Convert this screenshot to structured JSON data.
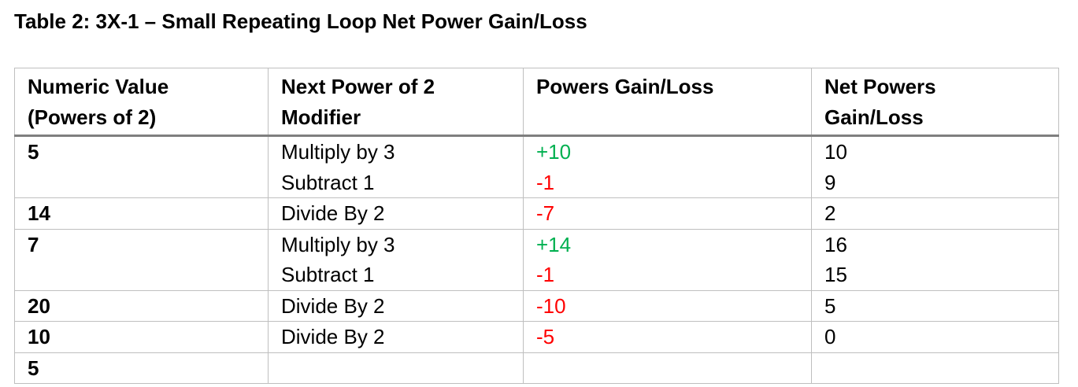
{
  "title": "Table 2: 3X-1 – Small Repeating Loop Net Power Gain/Loss",
  "colors": {
    "gain": "#00b050",
    "loss": "#ff0000",
    "grid": "#bfbfbf",
    "header_rule": "#7f7f7f"
  },
  "headers": {
    "col1_line1": "Numeric Value",
    "col1_line2": "(Powers of 2)",
    "col2_line1": "Next Power of 2",
    "col2_line2": "Modifier",
    "col3": "Powers Gain/Loss",
    "col4_line1": "Net Powers",
    "col4_line2": "Gain/Loss"
  },
  "rows": [
    {
      "value": "5",
      "modifiers": [
        "Multiply by 3",
        "Subtract 1"
      ],
      "gains": [
        "+10",
        "-1"
      ],
      "nets": [
        "10",
        "9"
      ]
    },
    {
      "value": "14",
      "modifiers": [
        "Divide By 2"
      ],
      "gains": [
        "-7"
      ],
      "nets": [
        "2"
      ]
    },
    {
      "value": "7",
      "modifiers": [
        "Multiply by 3",
        "Subtract 1"
      ],
      "gains": [
        "+14",
        "-1"
      ],
      "nets": [
        "16",
        "15"
      ]
    },
    {
      "value": "20",
      "modifiers": [
        "Divide By 2"
      ],
      "gains": [
        "-10"
      ],
      "nets": [
        "5"
      ]
    },
    {
      "value": "10",
      "modifiers": [
        "Divide By 2"
      ],
      "gains": [
        "-5"
      ],
      "nets": [
        "0"
      ]
    },
    {
      "value": "5",
      "modifiers": [],
      "gains": [],
      "nets": []
    }
  ]
}
